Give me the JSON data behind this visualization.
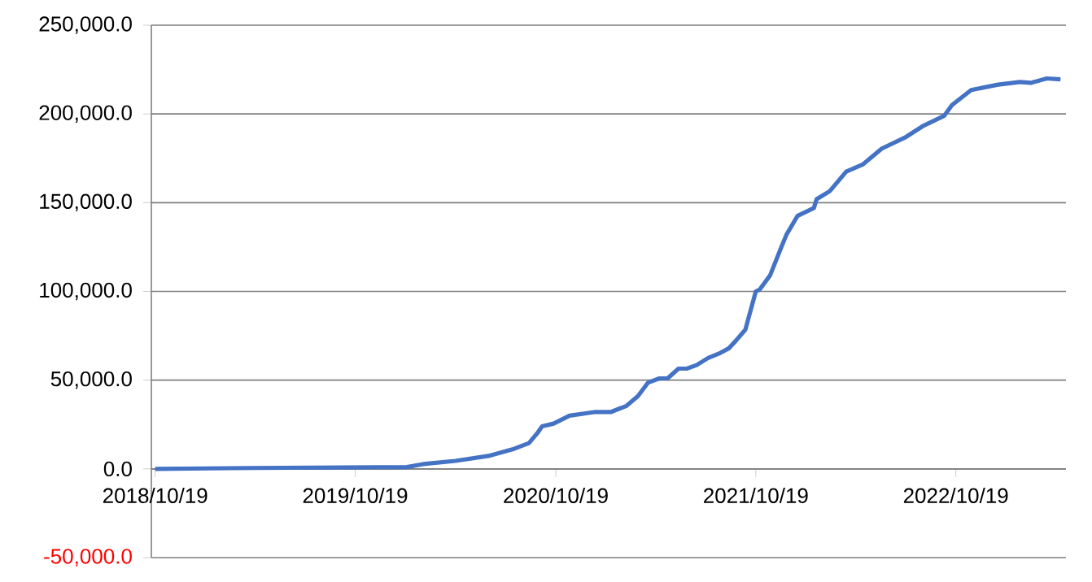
{
  "chart_data": {
    "type": "line",
    "x": [
      "2018-10-19",
      "2019-04-14",
      "2020-01-21",
      "2020-02-20",
      "2020-04-19",
      "2020-06-18",
      "2020-08-01",
      "2020-08-31",
      "2020-09-15",
      "2020-09-24",
      "2020-10-15",
      "2020-11-13",
      "2020-12-28",
      "2021-01-27",
      "2021-02-25",
      "2021-03-18",
      "2021-04-05",
      "2021-04-26",
      "2021-05-11",
      "2021-05-31",
      "2021-06-15",
      "2021-07-03",
      "2021-07-24",
      "2021-08-13",
      "2021-08-31",
      "2021-09-12",
      "2021-09-30",
      "2021-10-19",
      "2021-10-26",
      "2021-11-14",
      "2021-12-04",
      "2021-12-14",
      "2022-01-03",
      "2022-02-02",
      "2022-02-07",
      "2022-03-03",
      "2022-04-02",
      "2022-05-02",
      "2022-06-06",
      "2022-07-20",
      "2022-08-19",
      "2022-09-28",
      "2022-10-12",
      "2022-11-16",
      "2023-01-04",
      "2023-02-13",
      "2023-03-05",
      "2023-04-03",
      "2023-04-28"
    ],
    "series": [
      {
        "color": "#4472c4",
        "values": [
          0,
          500,
          1000,
          2700,
          4500,
          7300,
          11000,
          14500,
          20000,
          24000,
          25500,
          30000,
          32000,
          32000,
          35500,
          41000,
          48500,
          51000,
          51000,
          56500,
          56500,
          58500,
          62500,
          65000,
          68000,
          72000,
          78500,
          100000,
          101000,
          109000,
          124500,
          132000,
          142500,
          147000,
          152000,
          156500,
          167500,
          171500,
          180500,
          187000,
          193000,
          199000,
          205000,
          213500,
          216500,
          218000,
          217500,
          220000,
          219500
        ]
      }
    ],
    "xlim": [
      "2018-10-12",
      "2023-05-08"
    ],
    "xticks": [
      {
        "value": "2018-10-19",
        "label": "2018/10/19"
      },
      {
        "value": "2019-10-19",
        "label": "2019/10/19"
      },
      {
        "value": "2020-10-19",
        "label": "2020/10/19"
      },
      {
        "value": "2021-10-19",
        "label": "2021/10/19"
      },
      {
        "value": "2022-10-19",
        "label": "2022/10/19"
      }
    ],
    "ylim": [
      -50000,
      250000
    ],
    "yticks": [
      {
        "value": -50000,
        "label": "-50,000.0"
      },
      {
        "value": 0,
        "label": "0.0"
      },
      {
        "value": 50000,
        "label": "50,000.0"
      },
      {
        "value": 100000,
        "label": "100,000.0"
      },
      {
        "value": 150000,
        "label": "150,000.0"
      },
      {
        "value": 200000,
        "label": "200,000.0"
      },
      {
        "value": 250000,
        "label": "250,000.0"
      }
    ],
    "grid": "y",
    "legend": false,
    "marker": "none",
    "line_style": "solid"
  }
}
